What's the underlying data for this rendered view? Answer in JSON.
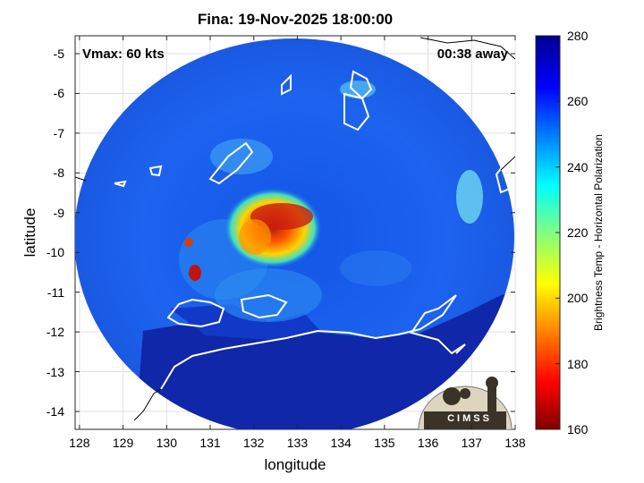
{
  "title": "Fina: 19-Nov-2025 18:00:00",
  "annotations": {
    "vmax": "Vmax: 60 kts",
    "away": "00:38 away"
  },
  "axes": {
    "xlabel": "longitude",
    "ylabel": "latitude"
  },
  "colorbar": {
    "label": "Brightness Temp - Horizontal Polarization",
    "range": [
      160,
      280
    ],
    "ticks": [
      "160",
      "180",
      "200",
      "220",
      "240",
      "260",
      "280"
    ],
    "colormap": "jet"
  },
  "logo": {
    "text": "CIMSS"
  },
  "chart_data": {
    "type": "heatmap",
    "title": "Fina: 19-Nov-2025 18:00:00",
    "xlabel": "longitude",
    "ylabel": "latitude",
    "xlim": [
      127.9,
      138
    ],
    "ylim": [
      -14.45,
      -4.55
    ],
    "x_ticks": [
      "128",
      "129",
      "130",
      "131",
      "132",
      "133",
      "134",
      "135",
      "136",
      "137",
      "138"
    ],
    "y_ticks": [
      "-5",
      "-6",
      "-7",
      "-8",
      "-9",
      "-10",
      "-11",
      "-12",
      "-13",
      "-14"
    ],
    "grid": true,
    "colorbar_range": [
      160,
      280
    ],
    "swath_center": {
      "lon": 132.9,
      "lat": -9.6
    },
    "storm_center": {
      "lon": 132.9,
      "lat": -9.6
    },
    "min_brightness_temp_region": {
      "lon": 132.5,
      "lat": -9.3,
      "approx_value": 170
    },
    "background_ocean_temp_approx": 265,
    "land_temp_approx": 278
  }
}
